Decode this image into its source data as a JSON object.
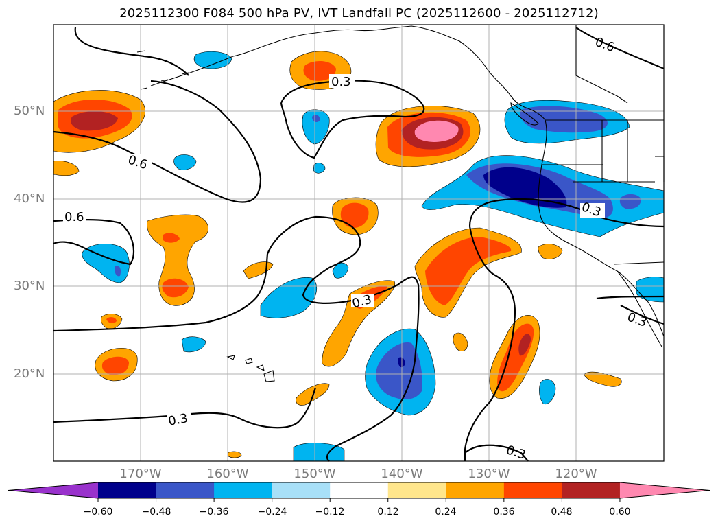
{
  "title": "2025112300 F084 500 hPa PV, IVT Landfall PC (2025112600 - 2025112712)",
  "map": {
    "lat_labels": [
      "50°N",
      "40°N",
      "30°N",
      "20°N"
    ],
    "lon_labels": [
      "170°W",
      "160°W",
      "150°W",
      "140°W",
      "130°W",
      "120°W"
    ],
    "contour_labels": [
      "0.3",
      "0.6",
      "0.6",
      "0.6",
      "0.3",
      "0.3",
      "0.3",
      "0.3",
      "0.3"
    ],
    "grid": true
  },
  "colorbar": {
    "ticks": [
      "−0.60",
      "−0.48",
      "−0.36",
      "−0.24",
      "−0.12",
      "0.12",
      "0.24",
      "0.36",
      "0.48",
      "0.60"
    ],
    "colors": [
      "#9932cc",
      "#00008b",
      "#3a56c8",
      "#00b4f0",
      "#a8e0f8",
      "#ffffff",
      "#ffe68c",
      "#ffa500",
      "#ff4500",
      "#b22222",
      "#ff88b0"
    ],
    "extend": "both"
  }
}
